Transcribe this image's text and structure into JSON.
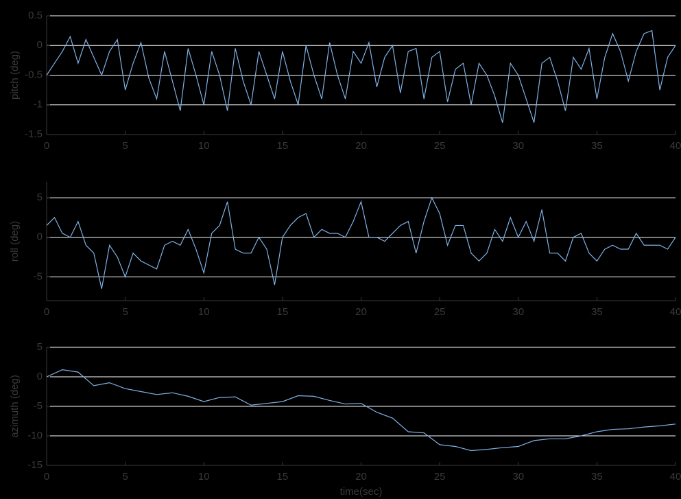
{
  "chart_data": [
    {
      "type": "line",
      "ylabel": "pitch (deg)",
      "x": [
        0,
        0.5,
        1,
        1.5,
        2,
        2.5,
        3,
        3.5,
        4,
        4.5,
        5,
        5.5,
        6,
        6.5,
        7,
        7.5,
        8,
        8.5,
        9,
        9.5,
        10,
        10.5,
        11,
        11.5,
        12,
        12.5,
        13,
        13.5,
        14,
        14.5,
        15,
        15.5,
        16,
        16.5,
        17,
        17.5,
        18,
        18.5,
        19,
        19.5,
        20,
        20.5,
        21,
        21.5,
        22,
        22.5,
        23,
        23.5,
        24,
        24.5,
        25,
        25.5,
        26,
        26.5,
        27,
        27.5,
        28,
        28.5,
        29,
        29.5,
        30,
        30.5,
        31,
        31.5,
        32,
        32.5,
        33,
        33.5,
        34,
        34.5,
        35,
        35.5,
        36,
        36.5,
        37,
        37.5,
        38,
        38.5,
        39,
        39.5,
        40
      ],
      "series": [
        {
          "color": "#7fb2e5",
          "values": [
            -0.5,
            -0.3,
            -0.1,
            0.15,
            -0.3,
            0.1,
            -0.2,
            -0.5,
            -0.1,
            0.1,
            -0.75,
            -0.3,
            0.05,
            -0.55,
            -0.9,
            -0.1,
            -0.6,
            -1.1,
            -0.05,
            -0.5,
            -1.0,
            -0.1,
            -0.5,
            -1.1,
            -0.05,
            -0.6,
            -1.0,
            -0.1,
            -0.5,
            -0.9,
            -0.1,
            -0.6,
            -1.0,
            0.0,
            -0.5,
            -0.9,
            0.05,
            -0.5,
            -0.9,
            -0.1,
            -0.3,
            0.05,
            -0.7,
            -0.2,
            0.0,
            -0.8,
            -0.1,
            -0.05,
            -0.9,
            -0.2,
            -0.1,
            -0.95,
            -0.4,
            -0.3,
            -1.0,
            -0.3,
            -0.5,
            -0.85,
            -1.3,
            -0.3,
            -0.5,
            -0.9,
            -1.3,
            -0.3,
            -0.2,
            -0.6,
            -1.1,
            -0.2,
            -0.4,
            -0.05,
            -0.9,
            -0.2,
            0.2,
            -0.1,
            -0.6,
            -0.1,
            0.2,
            0.25,
            -0.75,
            -0.2,
            0.0
          ]
        }
      ],
      "xlim": [
        0,
        40
      ],
      "xticks": [
        0,
        5,
        10,
        15,
        20,
        25,
        30,
        35,
        40
      ],
      "ylim": [
        -1.5,
        0.5
      ],
      "yticks": [
        -1.5,
        -1,
        -0.5,
        0,
        0.5
      ],
      "grid": true
    },
    {
      "type": "line",
      "ylabel": "roll (deg)",
      "x": [
        0,
        0.5,
        1,
        1.5,
        2,
        2.5,
        3,
        3.5,
        4,
        4.5,
        5,
        5.5,
        6,
        6.5,
        7,
        7.5,
        8,
        8.5,
        9,
        9.5,
        10,
        10.5,
        11,
        11.5,
        12,
        12.5,
        13,
        13.5,
        14,
        14.5,
        15,
        15.5,
        16,
        16.5,
        17,
        17.5,
        18,
        18.5,
        19,
        19.5,
        20,
        20.5,
        21,
        21.5,
        22,
        22.5,
        23,
        23.5,
        24,
        24.5,
        25,
        25.5,
        26,
        26.5,
        27,
        27.5,
        28,
        28.5,
        29,
        29.5,
        30,
        30.5,
        31,
        31.5,
        32,
        32.5,
        33,
        33.5,
        34,
        34.5,
        35,
        35.5,
        36,
        36.5,
        37,
        37.5,
        38,
        38.5,
        39,
        39.5,
        40
      ],
      "series": [
        {
          "color": "#7fb2e5",
          "values": [
            1.5,
            2.5,
            0.5,
            0.0,
            2.0,
            -1.0,
            -2.0,
            -6.5,
            -1.0,
            -2.5,
            -5.0,
            -2.0,
            -3.0,
            -3.5,
            -4.0,
            -1.0,
            -0.5,
            -1.0,
            1.0,
            -1.5,
            -4.5,
            0.5,
            1.5,
            4.5,
            -1.5,
            -2.0,
            -2.0,
            0.0,
            -1.5,
            -6.0,
            0.0,
            1.5,
            2.5,
            3.0,
            0.0,
            1.0,
            0.5,
            0.5,
            0.0,
            2.0,
            4.5,
            0.0,
            0.0,
            -0.5,
            0.5,
            1.5,
            2.0,
            -2.0,
            2.0,
            5.0,
            3.0,
            -1.0,
            1.5,
            1.5,
            -2.0,
            -3.0,
            -2.0,
            1.0,
            -0.5,
            2.5,
            0.0,
            2.0,
            -0.5,
            3.5,
            -2.0,
            -2.0,
            -3.0,
            0.0,
            0.5,
            -2.0,
            -3.0,
            -1.5,
            -1.0,
            -1.5,
            -1.5,
            0.5,
            -1.0,
            -1.0,
            -1.0,
            -1.5,
            0.0
          ]
        }
      ],
      "xlim": [
        0,
        40
      ],
      "xticks": [
        0,
        5,
        10,
        15,
        20,
        25,
        30,
        35,
        40
      ],
      "ylim": [
        -8,
        7
      ],
      "yticks": [
        -5,
        0,
        5
      ],
      "grid": true
    },
    {
      "type": "line",
      "ylabel": "azimuth (deg)",
      "xlabel": "time(sec)",
      "x": [
        0,
        1,
        2,
        3,
        4,
        5,
        6,
        7,
        8,
        9,
        10,
        11,
        12,
        13,
        14,
        15,
        16,
        17,
        18,
        19,
        20,
        21,
        22,
        23,
        24,
        25,
        26,
        27,
        28,
        29,
        30,
        31,
        32,
        33,
        34,
        35,
        36,
        37,
        38,
        39,
        40
      ],
      "series": [
        {
          "color": "#7fb2e5",
          "values": [
            0,
            1.2,
            0.8,
            -1.5,
            -1.0,
            -2.0,
            -2.5,
            -3.0,
            -2.7,
            -3.3,
            -4.2,
            -3.5,
            -3.4,
            -4.8,
            -4.5,
            -4.2,
            -3.2,
            -3.3,
            -4.0,
            -4.6,
            -4.5,
            -6.0,
            -7.0,
            -9.3,
            -9.5,
            -11.5,
            -11.8,
            -12.5,
            -12.3,
            -12.0,
            -11.8,
            -10.8,
            -10.5,
            -10.5,
            -10.0,
            -9.3,
            -8.9,
            -8.8,
            -8.5,
            -8.3,
            -8.0
          ]
        }
      ],
      "xlim": [
        0,
        40
      ],
      "xticks": [
        0,
        5,
        10,
        15,
        20,
        25,
        30,
        35,
        40
      ],
      "ylim": [
        -15,
        5
      ],
      "yticks": [
        -15,
        -10,
        -5,
        0,
        5
      ],
      "grid": true
    }
  ]
}
